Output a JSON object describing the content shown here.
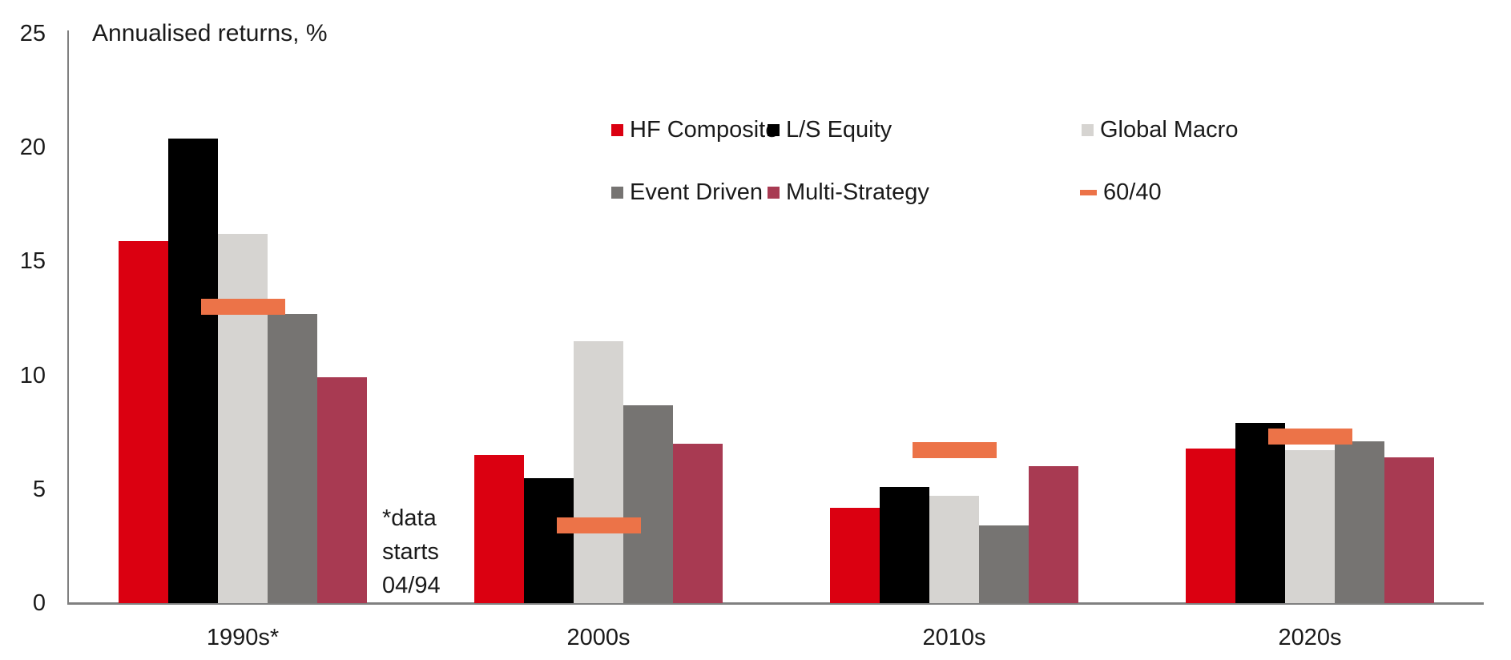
{
  "title": "Annualised returns, %",
  "y_axis": {
    "ticks": [
      "25",
      "20",
      "15",
      "10",
      "5",
      "0"
    ]
  },
  "categories": [
    "1990s*",
    "2000s",
    "2010s",
    "2020s"
  ],
  "legend": {
    "items": [
      {
        "label": "HF Composite",
        "color": "#db0011",
        "marker": "square"
      },
      {
        "label": "L/S Equity",
        "color": "#000000",
        "marker": "square"
      },
      {
        "label": "Global Macro",
        "color": "#d6d4d1",
        "marker": "square"
      },
      {
        "label": "Event Driven",
        "color": "#767472",
        "marker": "square"
      },
      {
        "label": "Multi-Strategy",
        "color": "#a83a52",
        "marker": "square"
      },
      {
        "label": "60/40",
        "color": "#ec7348",
        "marker": "dash"
      }
    ]
  },
  "footnote": {
    "lines": [
      "*data",
      "starts",
      "04/94"
    ]
  },
  "chart_data": {
    "type": "bar",
    "title": "Annualised returns, %",
    "categories": [
      "1990s*",
      "2000s",
      "2010s",
      "2020s"
    ],
    "series": [
      {
        "name": "HF Composite",
        "color": "#db0011",
        "values": [
          15.9,
          6.5,
          4.2,
          6.8
        ]
      },
      {
        "name": "L/S Equity",
        "color": "#000000",
        "values": [
          20.4,
          5.5,
          5.1,
          7.9
        ]
      },
      {
        "name": "Global Macro",
        "color": "#d6d4d1",
        "values": [
          16.2,
          11.5,
          4.7,
          6.7
        ]
      },
      {
        "name": "Event Driven",
        "color": "#767472",
        "values": [
          12.7,
          8.7,
          3.4,
          7.1
        ]
      },
      {
        "name": "Multi-Strategy",
        "color": "#a83a52",
        "values": [
          9.9,
          7.0,
          6.0,
          6.4
        ]
      }
    ],
    "overlay_series": {
      "name": "60/40",
      "color": "#ec7348",
      "style": "horizontal-dash",
      "values": [
        13.0,
        3.4,
        6.7,
        7.3
      ]
    },
    "ylabel": "Annualised returns, %",
    "xlabel": "",
    "ylim": [
      0,
      25
    ],
    "grid": false,
    "legend_position": "top-center-two-rows",
    "footnote": "*data starts 04/94",
    "axis_color": "#808080"
  }
}
